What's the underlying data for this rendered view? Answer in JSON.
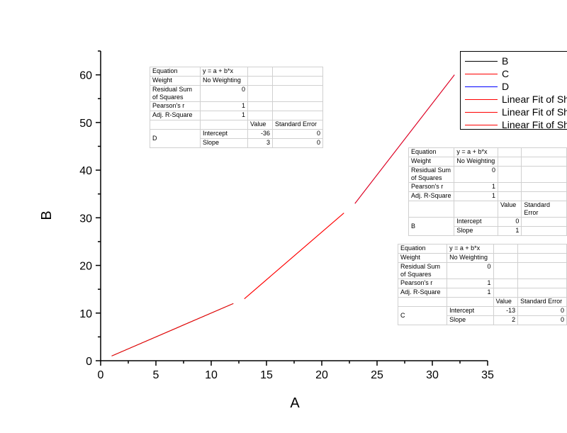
{
  "chart_data": {
    "type": "line",
    "xlabel": "A",
    "ylabel": "B",
    "xlim": [
      0,
      35
    ],
    "ylim": [
      0,
      65
    ],
    "x_ticks": [
      0,
      5,
      10,
      15,
      20,
      25,
      30,
      35
    ],
    "y_ticks": [
      0,
      10,
      20,
      30,
      40,
      50,
      60
    ],
    "grid": false,
    "legend_position": "top-right",
    "series": [
      {
        "name": "B",
        "color": "#000000",
        "x": [
          1,
          12
        ],
        "y": [
          1,
          12
        ]
      },
      {
        "name": "C",
        "color": "#ff0000",
        "x": [
          13,
          22
        ],
        "y": [
          13,
          31
        ]
      },
      {
        "name": "D",
        "color": "#0000ff",
        "x": [
          23,
          32
        ],
        "y": [
          33,
          60
        ]
      },
      {
        "name": "Linear Fit of Sh",
        "color": "#ff0000",
        "x": [
          1,
          12
        ],
        "y": [
          1,
          12
        ]
      },
      {
        "name": "Linear Fit of Sh",
        "color": "#ff0000",
        "x": [
          13,
          22
        ],
        "y": [
          13,
          31
        ]
      },
      {
        "name": "Linear Fit of Sh",
        "color": "#ff0000",
        "x": [
          23,
          32
        ],
        "y": [
          33,
          60
        ]
      }
    ]
  },
  "fit_tables": {
    "d": {
      "equation_label": "Equation",
      "equation": "y = a + b*x",
      "weight_label": "Weight",
      "weight": "No Weighting",
      "rss_label": "Residual Sum of Squares",
      "rss": "0",
      "pearson_label": "Pearson's r",
      "pearson": "1",
      "adjr_label": "Adj. R-Square",
      "adjr": "1",
      "value_header": "Value",
      "se_header": "Standard Error",
      "group": "D",
      "intercept_label": "Intercept",
      "intercept": "-36",
      "intercept_se": "0",
      "slope_label": "Slope",
      "slope": "3",
      "slope_se": "0"
    },
    "b": {
      "equation_label": "Equation",
      "equation": "y = a + b*x",
      "weight_label": "Weight",
      "weight": "No Weighting",
      "rss_label": "Residual Sum of Squares",
      "rss": "0",
      "pearson_label": "Pearson's r",
      "pearson": "1",
      "adjr_label": "Adj. R-Square",
      "adjr": "1",
      "value_header": "Value",
      "se_header": "Standard Error",
      "group": "B",
      "intercept_label": "Intercept",
      "intercept": "0",
      "intercept_se": "",
      "slope_label": "Slope",
      "slope": "1",
      "slope_se": ""
    },
    "c": {
      "equation_label": "Equation",
      "equation": "y = a + b*x",
      "weight_label": "Weight",
      "weight": "No Weighting",
      "rss_label": "Residual Sum of Squares",
      "rss": "0",
      "pearson_label": "Pearson's r",
      "pearson": "1",
      "adjr_label": "Adj. R-Square",
      "adjr": "1",
      "value_header": "Value",
      "se_header": "Standard Error",
      "group": "C",
      "intercept_label": "Intercept",
      "intercept": "-13",
      "intercept_se": "0",
      "slope_label": "Slope",
      "slope": "2",
      "slope_se": "0"
    }
  }
}
